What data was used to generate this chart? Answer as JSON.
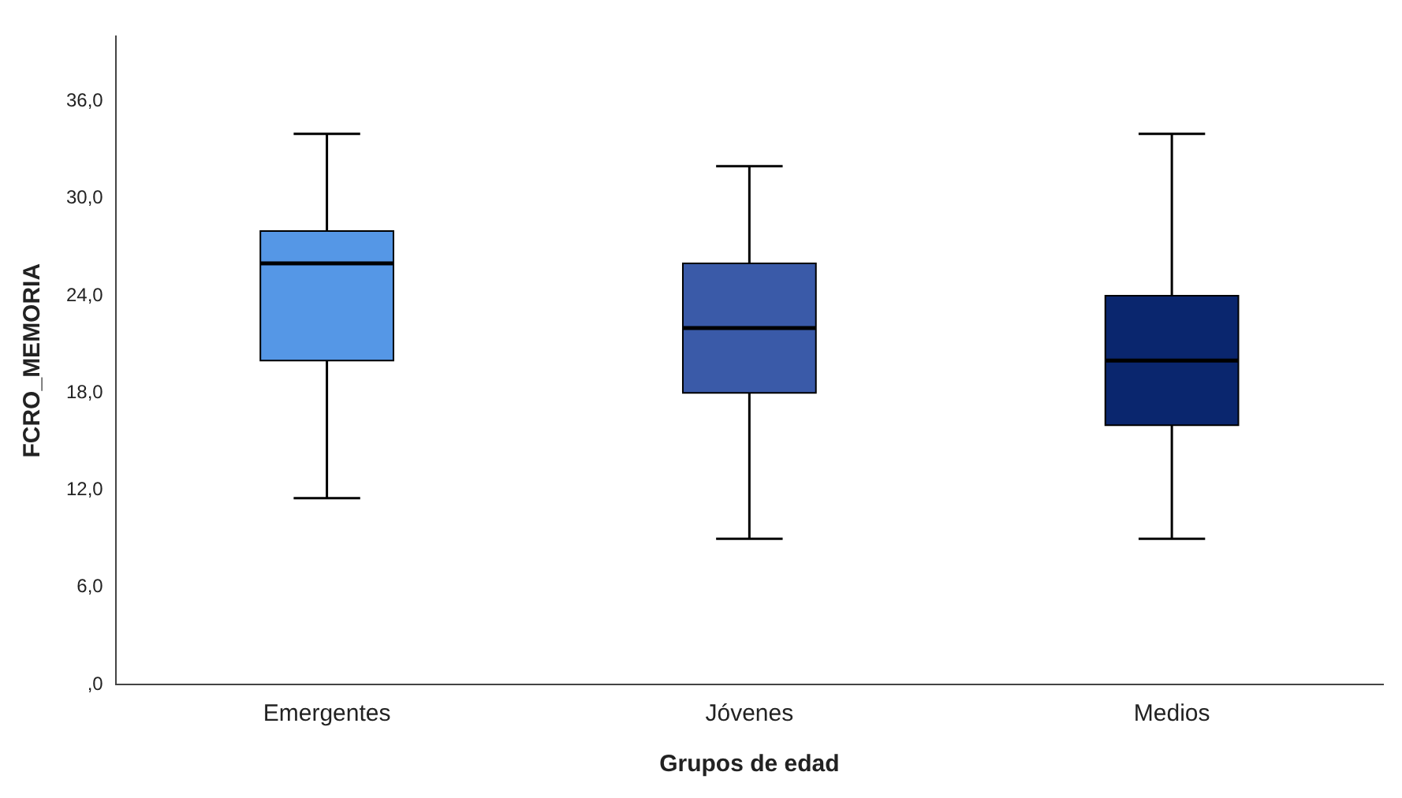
{
  "chart_data": {
    "type": "box",
    "xlabel": "Grupos de edad",
    "ylabel": "FCRO_MEMORIA",
    "categories": [
      "Emergentes",
      "Jóvenes",
      "Medios"
    ],
    "boxes": [
      {
        "low": 11.5,
        "q1": 20,
        "median": 26,
        "q3": 28,
        "high": 34
      },
      {
        "low": 9,
        "q1": 18,
        "median": 22,
        "q3": 26,
        "high": 32
      },
      {
        "low": 9,
        "q1": 16,
        "median": 20,
        "q3": 24,
        "high": 34
      }
    ],
    "colors": [
      "#5597e6",
      "#3a5aa8",
      "#0a266e"
    ],
    "ylim": [
      0,
      40
    ],
    "yticks": [
      {
        "value": 0,
        "label": ",0"
      },
      {
        "value": 6,
        "label": "6,0"
      },
      {
        "value": 12,
        "label": "12,0"
      },
      {
        "value": 18,
        "label": "18,0"
      },
      {
        "value": 24,
        "label": "24,0"
      },
      {
        "value": 30,
        "label": "30,0"
      },
      {
        "value": 36,
        "label": "36,0"
      }
    ],
    "grid": false
  }
}
